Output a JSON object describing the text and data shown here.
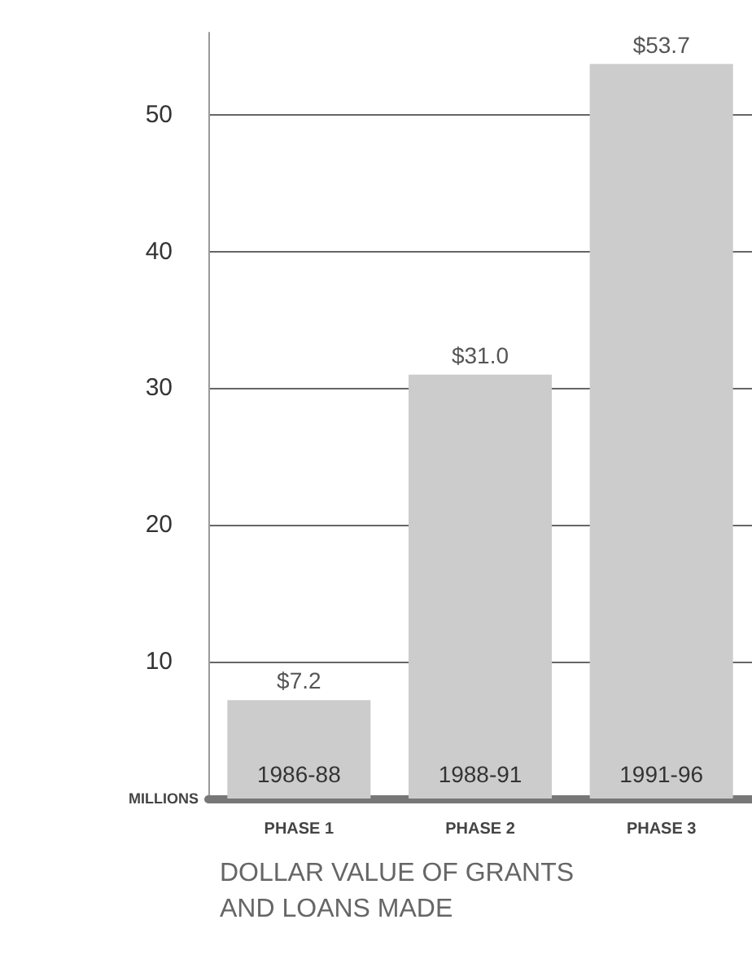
{
  "chart_data": {
    "type": "bar",
    "title": "DOLLAR VALUE OF GRANTS\nAND LOANS MADE",
    "ylabel": "MILLIONS",
    "categories": [
      "PHASE 1",
      "PHASE 2",
      "PHASE 3"
    ],
    "values": [
      7.2,
      31.0,
      53.7
    ],
    "value_labels": [
      "$7.2",
      "$31.0",
      "$53.7"
    ],
    "color": "#cccccc",
    "ylim": [
      0,
      56
    ],
    "yticks": [
      10,
      20,
      30,
      40,
      50
    ],
    "grid": "y",
    "annotations": [
      "1986-88",
      "1988-91",
      "1991-96"
    ]
  }
}
